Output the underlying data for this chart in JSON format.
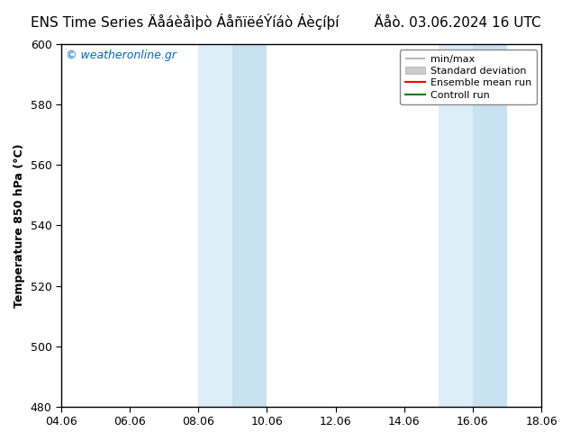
{
  "title_left": "ENS Time Series Äåáèåìþò ÁåñïëéÝíáò Áèçíþí",
  "title_right": "Äåò. 03.06.2024 16 UTC",
  "ylabel": "Temperature 850 hPa (°C)",
  "ylim": [
    480,
    600
  ],
  "yticks": [
    480,
    500,
    520,
    540,
    560,
    580,
    600
  ],
  "xtick_labels": [
    "04.06",
    "06.06",
    "08.06",
    "10.06",
    "12.06",
    "14.06",
    "16.06",
    "18.06"
  ],
  "xtick_values": [
    0,
    2,
    4,
    6,
    8,
    10,
    12,
    14
  ],
  "xlim": [
    0,
    14
  ],
  "shaded_bands": [
    {
      "x_start": 4.0,
      "x_end": 5.0,
      "color": "#ddeef8"
    },
    {
      "x_start": 5.0,
      "x_end": 6.0,
      "color": "#c8e2f2"
    },
    {
      "x_start": 11.0,
      "x_end": 12.0,
      "color": "#ddeef8"
    },
    {
      "x_start": 12.0,
      "x_end": 13.0,
      "color": "#c8e2f2"
    }
  ],
  "watermark": "© weatheronline.gr",
  "bg_color": "#ffffff",
  "plot_bg_color": "#ffffff",
  "title_fontsize": 11,
  "axis_fontsize": 9,
  "tick_fontsize": 9,
  "legend_fontsize": 8,
  "spine_color": "#000000"
}
